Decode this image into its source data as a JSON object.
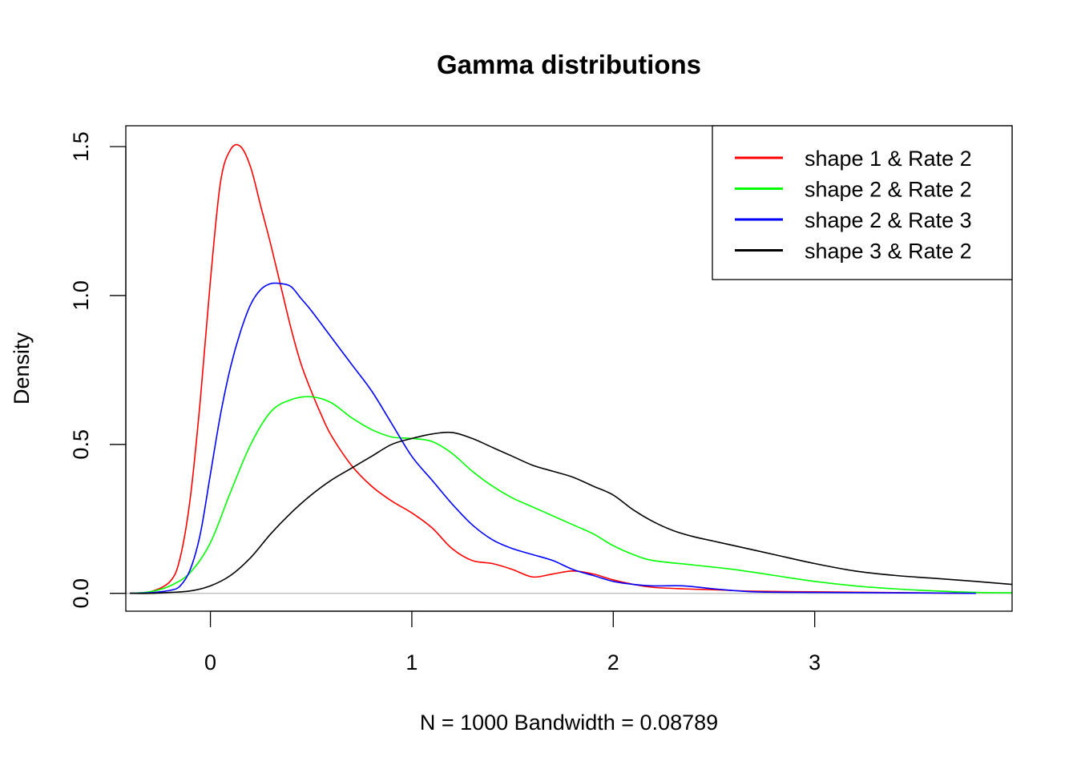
{
  "chart_data": {
    "type": "line",
    "title": "Gamma distributions",
    "xlabel": "N = 1000   Bandwidth = 0.08789",
    "ylabel": "Density",
    "xlim": [
      -0.42,
      3.98
    ],
    "ylim": [
      -0.06,
      1.57
    ],
    "x_ticks": [
      0,
      1,
      2,
      3
    ],
    "x_tick_labels": [
      "0",
      "1",
      "2",
      "3"
    ],
    "y_ticks": [
      0.0,
      0.5,
      1.0,
      1.5
    ],
    "y_tick_labels": [
      "0.0",
      "0.5",
      "1.0",
      "1.5"
    ],
    "grid": false,
    "baseline_y": 0,
    "legend_position": "top-right",
    "series": [
      {
        "name": "shape 1 & Rate 2",
        "color": "#ff0000",
        "x": [
          -0.4,
          -0.3,
          -0.2,
          -0.15,
          -0.1,
          -0.05,
          0.0,
          0.05,
          0.1,
          0.15,
          0.2,
          0.25,
          0.3,
          0.35,
          0.4,
          0.45,
          0.5,
          0.55,
          0.6,
          0.7,
          0.8,
          0.9,
          1.0,
          1.1,
          1.2,
          1.3,
          1.4,
          1.5,
          1.6,
          1.7,
          1.8,
          1.9,
          2.0,
          2.1,
          2.2,
          2.35,
          2.5,
          2.7,
          3.0,
          3.3,
          3.6,
          3.8
        ],
        "y": [
          0.0,
          0.005,
          0.04,
          0.12,
          0.32,
          0.65,
          1.05,
          1.38,
          1.49,
          1.5,
          1.43,
          1.3,
          1.17,
          1.03,
          0.89,
          0.77,
          0.68,
          0.6,
          0.53,
          0.43,
          0.36,
          0.31,
          0.27,
          0.22,
          0.15,
          0.11,
          0.1,
          0.08,
          0.055,
          0.065,
          0.075,
          0.065,
          0.045,
          0.03,
          0.02,
          0.015,
          0.012,
          0.007,
          0.005,
          0.003,
          0.001,
          0.0
        ]
      },
      {
        "name": "shape 2 & Rate 2",
        "color": "#00ff00",
        "x": [
          -0.4,
          -0.3,
          -0.2,
          -0.1,
          0.0,
          0.1,
          0.2,
          0.3,
          0.4,
          0.5,
          0.6,
          0.7,
          0.8,
          0.9,
          1.0,
          1.1,
          1.2,
          1.3,
          1.4,
          1.5,
          1.6,
          1.7,
          1.8,
          1.9,
          2.0,
          2.1,
          2.2,
          2.4,
          2.6,
          2.8,
          3.0,
          3.2,
          3.4,
          3.6,
          3.8,
          3.98
        ],
        "y": [
          0.0,
          0.005,
          0.025,
          0.07,
          0.17,
          0.34,
          0.5,
          0.61,
          0.65,
          0.66,
          0.64,
          0.59,
          0.55,
          0.525,
          0.52,
          0.51,
          0.47,
          0.41,
          0.36,
          0.32,
          0.29,
          0.26,
          0.23,
          0.2,
          0.16,
          0.13,
          0.11,
          0.095,
          0.08,
          0.06,
          0.04,
          0.025,
          0.015,
          0.008,
          0.003,
          0.002
        ]
      },
      {
        "name": "shape 2 & Rate 3",
        "color": "#0000ff",
        "x": [
          -0.4,
          -0.3,
          -0.2,
          -0.15,
          -0.1,
          -0.05,
          0.0,
          0.05,
          0.1,
          0.15,
          0.2,
          0.25,
          0.3,
          0.35,
          0.4,
          0.45,
          0.5,
          0.6,
          0.7,
          0.8,
          0.9,
          1.0,
          1.1,
          1.2,
          1.3,
          1.4,
          1.5,
          1.6,
          1.7,
          1.8,
          1.9,
          2.0,
          2.1,
          2.2,
          2.35,
          2.5,
          2.7,
          3.0,
          3.3,
          3.6,
          3.8
        ],
        "y": [
          0.0,
          0.002,
          0.01,
          0.025,
          0.08,
          0.2,
          0.4,
          0.6,
          0.76,
          0.88,
          0.97,
          1.02,
          1.04,
          1.04,
          1.03,
          0.99,
          0.95,
          0.86,
          0.77,
          0.68,
          0.57,
          0.46,
          0.38,
          0.3,
          0.23,
          0.18,
          0.15,
          0.13,
          0.11,
          0.08,
          0.06,
          0.04,
          0.03,
          0.025,
          0.025,
          0.015,
          0.005,
          0.003,
          0.002,
          0.001,
          0.0
        ]
      },
      {
        "name": "shape 3 & Rate 2",
        "color": "#000000",
        "x": [
          -0.4,
          -0.3,
          -0.2,
          -0.1,
          0.0,
          0.1,
          0.2,
          0.3,
          0.4,
          0.5,
          0.6,
          0.7,
          0.8,
          0.9,
          1.0,
          1.1,
          1.2,
          1.3,
          1.4,
          1.5,
          1.6,
          1.7,
          1.8,
          1.9,
          2.0,
          2.1,
          2.2,
          2.3,
          2.4,
          2.5,
          2.6,
          2.8,
          3.0,
          3.2,
          3.4,
          3.6,
          3.8,
          3.98
        ],
        "y": [
          0.0,
          0.0,
          0.003,
          0.008,
          0.025,
          0.06,
          0.12,
          0.2,
          0.27,
          0.33,
          0.38,
          0.42,
          0.46,
          0.5,
          0.52,
          0.535,
          0.54,
          0.52,
          0.49,
          0.46,
          0.43,
          0.41,
          0.39,
          0.36,
          0.33,
          0.28,
          0.24,
          0.21,
          0.19,
          0.175,
          0.16,
          0.13,
          0.1,
          0.075,
          0.06,
          0.05,
          0.04,
          0.03
        ]
      }
    ]
  }
}
